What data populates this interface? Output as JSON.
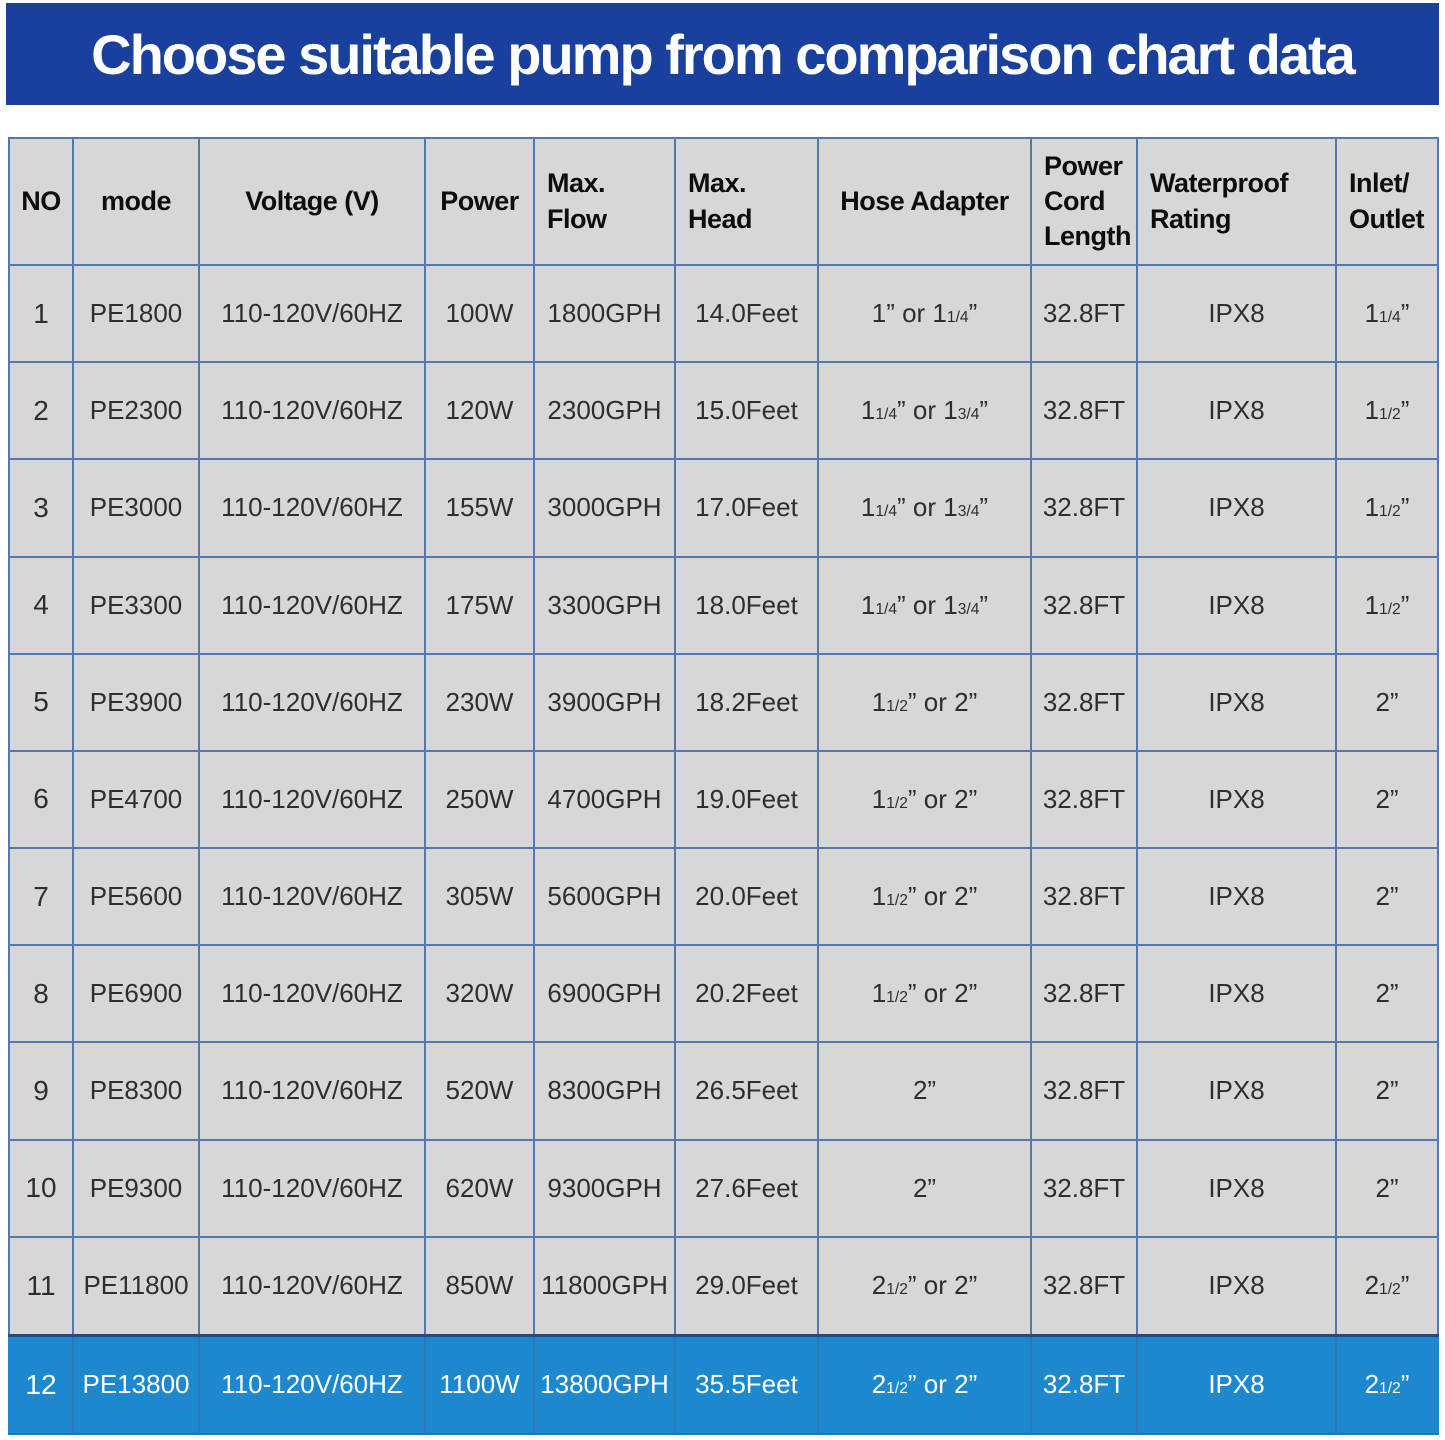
{
  "banner": {
    "bg": "#18409c"
  },
  "colors": {
    "banner_bg": "#18409c",
    "header_text": "#0d0d0d",
    "body_text": "#2e2e2e",
    "cell_bg": "#d7d7d7",
    "grid_line": "#5578ae",
    "outer_border": "#1c3e92",
    "highlight_bg": "#1e88cf",
    "highlight_text": "#ffffff"
  },
  "chart_data": {
    "type": "table",
    "title": "Choose suitable pump from comparison chart data",
    "columns": [
      {
        "key": "no",
        "label": "NO"
      },
      {
        "key": "mode",
        "label": "mode"
      },
      {
        "key": "voltage",
        "label": "Voltage (V)"
      },
      {
        "key": "power",
        "label": "Power"
      },
      {
        "key": "max_flow",
        "label": "Max.\nFlow"
      },
      {
        "key": "max_head",
        "label": "Max.\nHead"
      },
      {
        "key": "hose_adapter",
        "label": "Hose Adapter"
      },
      {
        "key": "power_cord_length",
        "label": "Power\nCord\nLength"
      },
      {
        "key": "waterproof_rating",
        "label": "Waterproof\nRating"
      },
      {
        "key": "inlet_outlet",
        "label": "Inlet/\nOutlet"
      }
    ],
    "rows": [
      {
        "no": "1",
        "mode": "PE1800",
        "voltage": "110-120V/60HZ",
        "power": "100W",
        "max_flow": "1800GPH",
        "max_head": "14.0Feet",
        "hose_adapter": "1” or 1[1/4]”",
        "power_cord_length": "32.8FT",
        "waterproof_rating": "IPX8",
        "inlet_outlet": "1[1/4]”"
      },
      {
        "no": "2",
        "mode": "PE2300",
        "voltage": "110-120V/60HZ",
        "power": "120W",
        "max_flow": "2300GPH",
        "max_head": "15.0Feet",
        "hose_adapter": "1[1/4]” or 1[3/4]”",
        "power_cord_length": "32.8FT",
        "waterproof_rating": "IPX8",
        "inlet_outlet": "1[1/2]”"
      },
      {
        "no": "3",
        "mode": "PE3000",
        "voltage": "110-120V/60HZ",
        "power": "155W",
        "max_flow": "3000GPH",
        "max_head": "17.0Feet",
        "hose_adapter": "1[1/4]” or 1[3/4]”",
        "power_cord_length": "32.8FT",
        "waterproof_rating": "IPX8",
        "inlet_outlet": "1[1/2]”"
      },
      {
        "no": "4",
        "mode": "PE3300",
        "voltage": "110-120V/60HZ",
        "power": "175W",
        "max_flow": "3300GPH",
        "max_head": "18.0Feet",
        "hose_adapter": "1[1/4]” or 1[3/4]”",
        "power_cord_length": "32.8FT",
        "waterproof_rating": "IPX8",
        "inlet_outlet": "1[1/2]”"
      },
      {
        "no": "5",
        "mode": "PE3900",
        "voltage": "110-120V/60HZ",
        "power": "230W",
        "max_flow": "3900GPH",
        "max_head": "18.2Feet",
        "hose_adapter": "1[1/2]” or 2”",
        "power_cord_length": "32.8FT",
        "waterproof_rating": "IPX8",
        "inlet_outlet": "2”"
      },
      {
        "no": "6",
        "mode": "PE4700",
        "voltage": "110-120V/60HZ",
        "power": "250W",
        "max_flow": "4700GPH",
        "max_head": "19.0Feet",
        "hose_adapter": "1[1/2]” or 2”",
        "power_cord_length": "32.8FT",
        "waterproof_rating": "IPX8",
        "inlet_outlet": "2”"
      },
      {
        "no": "7",
        "mode": "PE5600",
        "voltage": "110-120V/60HZ",
        "power": "305W",
        "max_flow": "5600GPH",
        "max_head": "20.0Feet",
        "hose_adapter": "1[1/2]” or 2”",
        "power_cord_length": "32.8FT",
        "waterproof_rating": "IPX8",
        "inlet_outlet": "2”"
      },
      {
        "no": "8",
        "mode": "PE6900",
        "voltage": "110-120V/60HZ",
        "power": "320W",
        "max_flow": "6900GPH",
        "max_head": "20.2Feet",
        "hose_adapter": "1[1/2]” or 2”",
        "power_cord_length": "32.8FT",
        "waterproof_rating": "IPX8",
        "inlet_outlet": "2”"
      },
      {
        "no": "9",
        "mode": "PE8300",
        "voltage": "110-120V/60HZ",
        "power": "520W",
        "max_flow": "8300GPH",
        "max_head": "26.5Feet",
        "hose_adapter": "2”",
        "power_cord_length": "32.8FT",
        "waterproof_rating": "IPX8",
        "inlet_outlet": "2”"
      },
      {
        "no": "10",
        "mode": "PE9300",
        "voltage": "110-120V/60HZ",
        "power": "620W",
        "max_flow": "9300GPH",
        "max_head": "27.6Feet",
        "hose_adapter": "2”",
        "power_cord_length": "32.8FT",
        "waterproof_rating": "IPX8",
        "inlet_outlet": "2”"
      },
      {
        "no": "11",
        "mode": "PE11800",
        "voltage": "110-120V/60HZ",
        "power": "850W",
        "max_flow": "11800GPH",
        "max_head": "29.0Feet",
        "hose_adapter": "2[1/2]” or 2”",
        "power_cord_length": "32.8FT",
        "waterproof_rating": "IPX8",
        "inlet_outlet": "2[1/2]”"
      },
      {
        "no": "12",
        "mode": "PE13800",
        "voltage": "110-120V/60HZ",
        "power": "1100W",
        "max_flow": "13800GPH",
        "max_head": "35.5Feet",
        "hose_adapter": "2[1/2]” or 2”",
        "power_cord_length": "32.8FT",
        "waterproof_rating": "IPX8",
        "inlet_outlet": "2[1/2]”"
      }
    ],
    "highlighted_row": "12",
    "layout_hints": {
      "grid": "on",
      "header_position": "top"
    }
  }
}
